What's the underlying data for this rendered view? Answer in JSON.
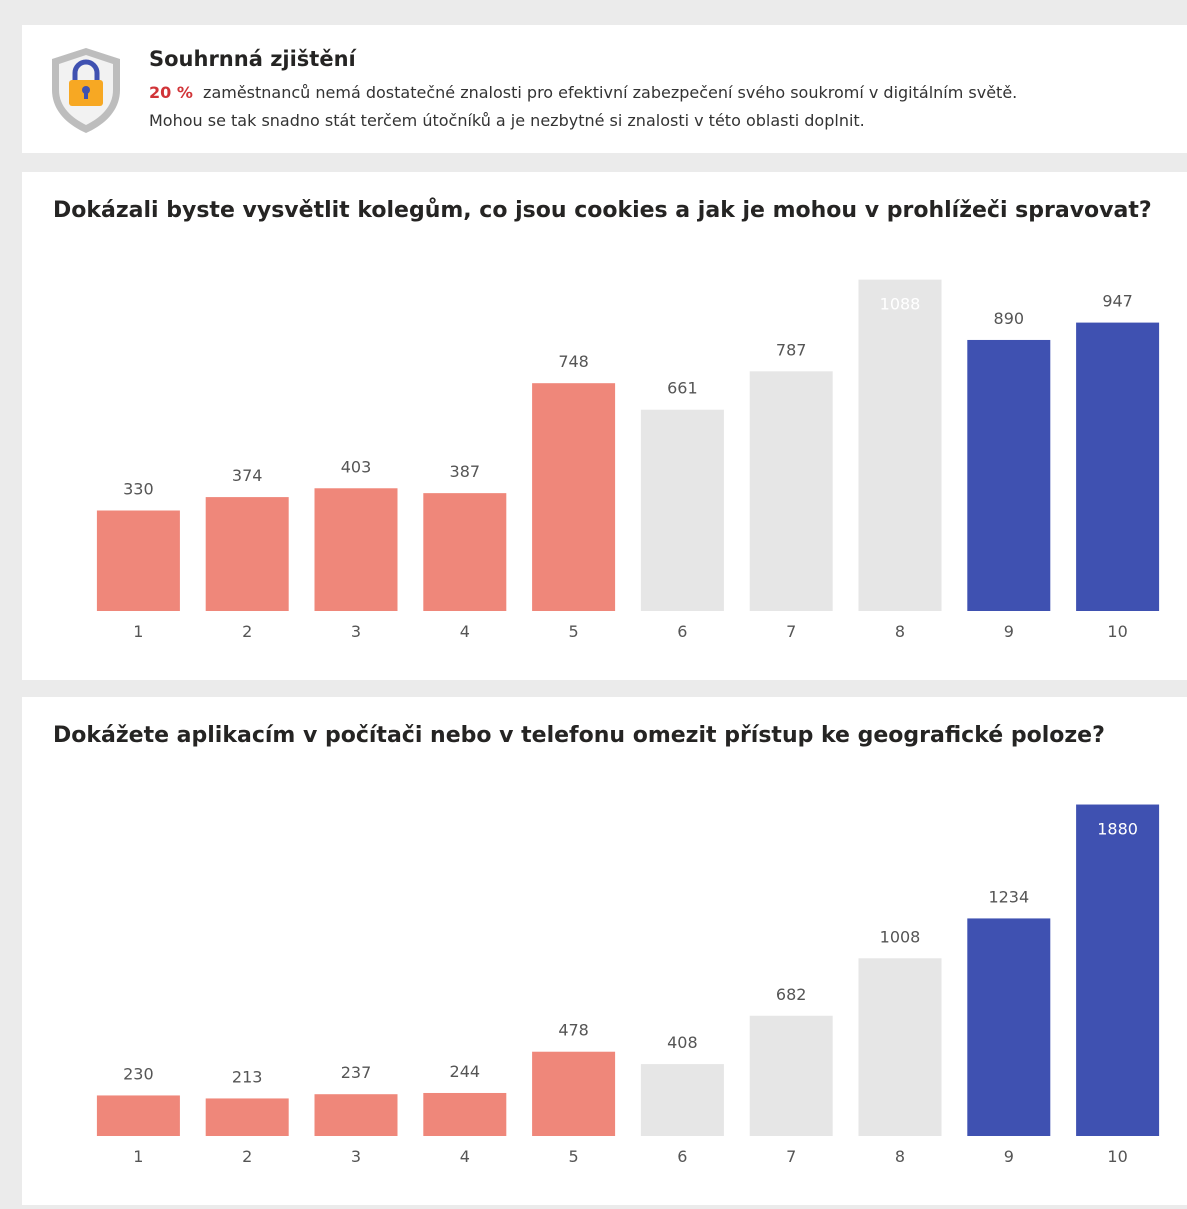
{
  "header": {
    "title": "Souhrnná zjištění",
    "highlight": "20 %",
    "line1": "zaměstnanců nemá dostatečné znalosti pro efektivní zabezpečení svého soukromí v digitálním světě.",
    "line2": "Mohou se tak snadno stát terčem útočníků a je nezbytné si znalosti v této oblasti doplnit."
  },
  "chart_data": [
    {
      "type": "bar",
      "title": "Dokázali byste vysvětlit kolegům, co jsou cookies a jak je mohou v prohlížeči spravovat?",
      "categories": [
        "1",
        "2",
        "3",
        "4",
        "5",
        "6",
        "7",
        "8",
        "9",
        "10"
      ],
      "values": [
        330,
        374,
        403,
        387,
        748,
        661,
        787,
        1088,
        890,
        947
      ],
      "colors": [
        "#ef877a",
        "#ef877a",
        "#ef877a",
        "#ef877a",
        "#ef877a",
        "#e6e6e6",
        "#e6e6e6",
        "#e6e6e6",
        "#3f51b1",
        "#3f51b1"
      ],
      "ylim": [
        0,
        1100
      ]
    },
    {
      "type": "bar",
      "title": "Dokážete aplikacím v počítači nebo v telefonu omezit přístup ke geografické poloze?",
      "categories": [
        "1",
        "2",
        "3",
        "4",
        "5",
        "6",
        "7",
        "8",
        "9",
        "10"
      ],
      "values": [
        230,
        213,
        237,
        244,
        478,
        408,
        682,
        1008,
        1234,
        1880
      ],
      "colors": [
        "#ef877a",
        "#ef877a",
        "#ef877a",
        "#ef877a",
        "#ef877a",
        "#e6e6e6",
        "#e6e6e6",
        "#e6e6e6",
        "#3f51b1",
        "#3f51b1"
      ],
      "ylim": [
        0,
        1900
      ]
    }
  ]
}
